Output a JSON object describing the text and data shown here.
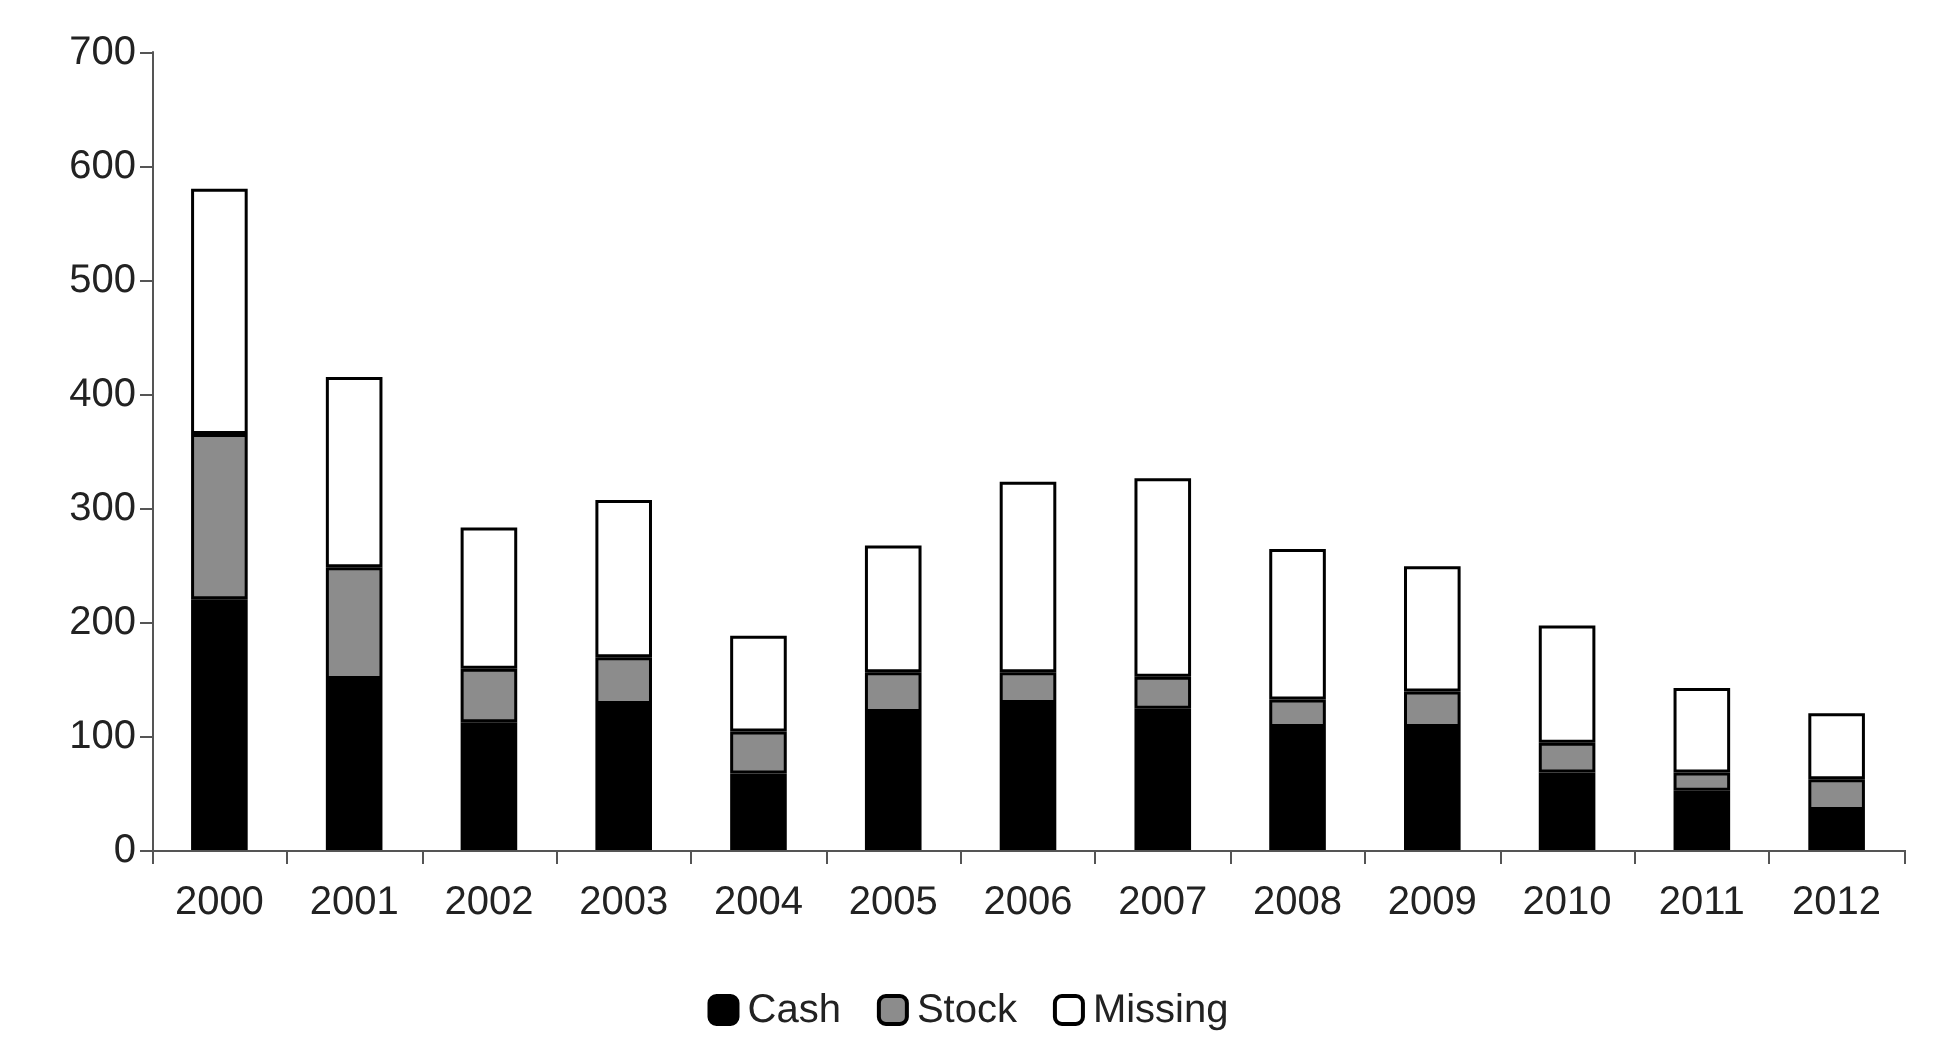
{
  "chart_data": {
    "type": "bar",
    "stacked": true,
    "categories": [
      "2000",
      "2001",
      "2002",
      "2003",
      "2004",
      "2005",
      "2006",
      "2007",
      "2008",
      "2009",
      "2010",
      "2011",
      "2012"
    ],
    "series": [
      {
        "name": "Cash",
        "color": "#000000",
        "values": [
          220,
          150,
          112,
          128,
          67,
          121,
          129,
          124,
          108,
          108,
          68,
          52,
          35
        ]
      },
      {
        "name": "Stock",
        "color": "#8c8c8c",
        "values": [
          145,
          98,
          47,
          41,
          37,
          35,
          27,
          28,
          24,
          31,
          26,
          16,
          27
        ]
      },
      {
        "name": "Missing",
        "color": "#ffffff",
        "values": [
          215,
          167,
          124,
          138,
          84,
          111,
          167,
          174,
          132,
          110,
          103,
          74,
          58
        ]
      }
    ],
    "ylim": [
      0,
      700
    ],
    "yticks": [
      0,
      100,
      200,
      300,
      400,
      500,
      600,
      700
    ],
    "grid": false,
    "legend": "bottom"
  }
}
